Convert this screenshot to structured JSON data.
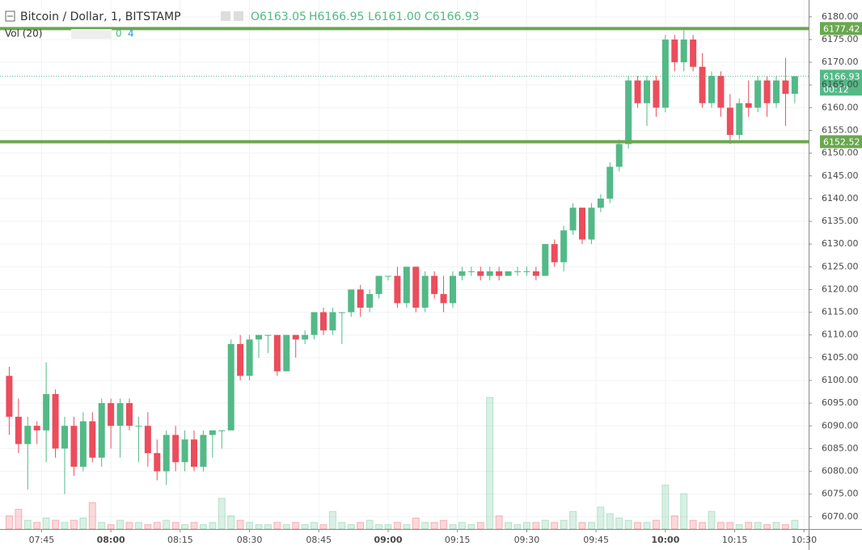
{
  "header": {
    "symbol": "Bitcoin / Dollar, 1, BITSTAMP",
    "open": "O6163.05",
    "high": "H6166.95",
    "low": "L6161.00",
    "close": "C6166.93"
  },
  "volume_legend": {
    "label": "Vol (20)",
    "values": [
      "0",
      "4"
    ]
  },
  "chart_data": {
    "type": "candlestick",
    "x": [
      "07:38",
      "07:40",
      "07:42",
      "07:44",
      "07:46",
      "07:48",
      "07:50",
      "07:52",
      "07:54",
      "07:56",
      "07:58",
      "08:00",
      "08:02",
      "08:04",
      "08:06",
      "08:08",
      "08:10",
      "08:12",
      "08:14",
      "08:16",
      "08:18",
      "08:20",
      "08:22",
      "08:24",
      "08:26",
      "08:28",
      "08:30",
      "08:32",
      "08:34",
      "08:36",
      "08:38",
      "08:40",
      "08:42",
      "08:44",
      "08:46",
      "08:48",
      "08:50",
      "08:52",
      "08:54",
      "08:56",
      "08:58",
      "09:00",
      "09:02",
      "09:04",
      "09:06",
      "09:08",
      "09:10",
      "09:12",
      "09:14",
      "09:16",
      "09:18",
      "09:20",
      "09:22",
      "09:24",
      "09:26",
      "09:28",
      "09:30",
      "09:32",
      "09:34",
      "09:36",
      "09:38",
      "09:40",
      "09:42",
      "09:44",
      "09:46",
      "09:48",
      "09:50",
      "09:52",
      "09:54",
      "09:56",
      "09:58",
      "10:00",
      "10:02",
      "10:04",
      "10:06",
      "10:08",
      "10:10",
      "10:12",
      "10:14",
      "10:16",
      "10:18",
      "10:20",
      "10:22",
      "10:24",
      "10:26",
      "10:28"
    ],
    "ohlc": [
      [
        6101,
        6103,
        6088,
        6092
      ],
      [
        6092,
        6096,
        6084,
        6086
      ],
      [
        6086,
        6092,
        6076,
        6090
      ],
      [
        6090,
        6091,
        6086,
        6089
      ],
      [
        6089,
        6104,
        6082,
        6097
      ],
      [
        6097,
        6098,
        6083,
        6085
      ],
      [
        6085,
        6092,
        6075,
        6090
      ],
      [
        6090,
        6092,
        6079,
        6081
      ],
      [
        6081,
        6093,
        6080,
        6091
      ],
      [
        6091,
        6093,
        6082,
        6083
      ],
      [
        6083,
        6096,
        6081,
        6095
      ],
      [
        6095,
        6096,
        6085,
        6090
      ],
      [
        6090,
        6096,
        6083,
        6095
      ],
      [
        6095,
        6096,
        6089,
        6090
      ],
      [
        6090,
        6092,
        6082,
        6090
      ],
      [
        6090,
        6093,
        6081,
        6084
      ],
      [
        6084,
        6087,
        6078,
        6080
      ],
      [
        6080,
        6089,
        6077,
        6088
      ],
      [
        6088,
        6090,
        6080,
        6082
      ],
      [
        6082,
        6089,
        6080,
        6087
      ],
      [
        6087,
        6089,
        6080,
        6081
      ],
      [
        6081,
        6089,
        6080,
        6088
      ],
      [
        6088,
        6089,
        6083,
        6089
      ],
      [
        6089,
        6089,
        6085,
        6089
      ],
      [
        6089,
        6109,
        6089,
        6108
      ],
      [
        6108,
        6110,
        6100,
        6101
      ],
      [
        6101,
        6110,
        6100,
        6109
      ],
      [
        6109,
        6110,
        6105,
        6110
      ],
      [
        6110,
        6110,
        6106,
        6110
      ],
      [
        6110,
        6110,
        6101,
        6102
      ],
      [
        6102,
        6110,
        6102,
        6110
      ],
      [
        6110,
        6110,
        6105,
        6109
      ],
      [
        6109,
        6111,
        6108,
        6110
      ],
      [
        6110,
        6115,
        6109,
        6115
      ],
      [
        6115,
        6116,
        6110,
        6111
      ],
      [
        6111,
        6116,
        6110,
        6115
      ],
      [
        6115,
        6115,
        6108,
        6115
      ],
      [
        6115,
        6120,
        6114,
        6120
      ],
      [
        6120,
        6121,
        6114,
        6116
      ],
      [
        6116,
        6120,
        6115,
        6119
      ],
      [
        6119,
        6123,
        6118,
        6123
      ],
      [
        6123,
        6123,
        6122,
        6123
      ],
      [
        6123,
        6125,
        6116,
        6117
      ],
      [
        6117,
        6125,
        6116,
        6125
      ],
      [
        6125,
        6125,
        6115,
        6116
      ],
      [
        6116,
        6124,
        6115,
        6123
      ],
      [
        6123,
        6124,
        6118,
        6119
      ],
      [
        6119,
        6123,
        6115,
        6117
      ],
      [
        6117,
        6124,
        6116,
        6123
      ],
      [
        6123,
        6125,
        6122,
        6124
      ],
      [
        6124,
        6125,
        6123,
        6124
      ],
      [
        6124,
        6125,
        6122,
        6123
      ],
      [
        6123,
        6125,
        6122,
        6124
      ],
      [
        6124,
        6125,
        6122,
        6123
      ],
      [
        6123,
        6124,
        6123,
        6124
      ],
      [
        6124,
        6125,
        6123,
        6124
      ],
      [
        6124,
        6125,
        6123,
        6124
      ],
      [
        6124,
        6125,
        6122,
        6123
      ],
      [
        6123,
        6130,
        6123,
        6130
      ],
      [
        6130,
        6131,
        6125,
        6126
      ],
      [
        6126,
        6134,
        6124,
        6133
      ],
      [
        6133,
        6139,
        6132,
        6138
      ],
      [
        6138,
        6138,
        6130,
        6131
      ],
      [
        6131,
        6139,
        6130,
        6138
      ],
      [
        6138,
        6141,
        6137,
        6140
      ],
      [
        6140,
        6148,
        6139,
        6147
      ],
      [
        6147,
        6153,
        6146,
        6152
      ],
      [
        6152,
        6167,
        6151,
        6166
      ],
      [
        6166,
        6167,
        6160,
        6161
      ],
      [
        6161,
        6167,
        6156,
        6166
      ],
      [
        6166,
        6167,
        6158,
        6160
      ],
      [
        6160,
        6176,
        6159,
        6175
      ],
      [
        6175,
        6176,
        6168,
        6170
      ],
      [
        6170,
        6177,
        6168,
        6175
      ],
      [
        6175,
        6176,
        6168,
        6169
      ],
      [
        6169,
        6172,
        6160,
        6161
      ],
      [
        6161,
        6168,
        6160,
        6167
      ],
      [
        6167,
        6168,
        6158,
        6160
      ],
      [
        6160,
        6163,
        6152,
        6154
      ],
      [
        6154,
        6162,
        6153,
        6161
      ],
      [
        6161,
        6166,
        6158,
        6160
      ],
      [
        6160,
        6167,
        6159,
        6166
      ],
      [
        6166,
        6167,
        6158,
        6161
      ],
      [
        6161,
        6167,
        6160,
        6166
      ],
      [
        6166,
        6171,
        6156,
        6163.05
      ],
      [
        6163.05,
        6166.95,
        6161.0,
        6166.93
      ]
    ],
    "volume": [
      6,
      9,
      4,
      3,
      5,
      4,
      3,
      4,
      5,
      12,
      3,
      2,
      4,
      3,
      3,
      2,
      3,
      4,
      3,
      2,
      3,
      2,
      3,
      14,
      6,
      4,
      3,
      2,
      2,
      3,
      2,
      3,
      2,
      3,
      2,
      8,
      3,
      2,
      3,
      4,
      2,
      2,
      3,
      2,
      5,
      3,
      3,
      4,
      2,
      3,
      2,
      3,
      60,
      6,
      3,
      2,
      3,
      3,
      4,
      3,
      4,
      8,
      3,
      3,
      10,
      7,
      5,
      4,
      3,
      3,
      4,
      20,
      6,
      16,
      4,
      3,
      8,
      3,
      3,
      2,
      3,
      3,
      2,
      3,
      2,
      4
    ],
    "xlim": [
      "07:36",
      "10:31"
    ],
    "ylim": [
      6067.3,
      6183.7
    ],
    "y2lim": [
      0,
      70
    ],
    "xticks": [
      "07:45",
      "08:00",
      "08:15",
      "08:30",
      "08:45",
      "09:00",
      "09:15",
      "09:30",
      "09:45",
      "10:00",
      "10:15",
      "10:30"
    ],
    "yticks": [
      {
        "value": 6070,
        "label": "6070.00"
      },
      {
        "value": 6075,
        "label": "6075.00"
      },
      {
        "value": 6080,
        "label": "6080.00"
      },
      {
        "value": 6085,
        "label": "6085.00"
      },
      {
        "value": 6090,
        "label": "6090.00"
      },
      {
        "value": 6095,
        "label": "6095.00"
      },
      {
        "value": 6100,
        "label": "6100.00"
      },
      {
        "value": 6105,
        "label": "6105.00"
      },
      {
        "value": 6110,
        "label": "6110.00"
      },
      {
        "value": 6115,
        "label": "6115.00"
      },
      {
        "value": 6120,
        "label": "6120.00"
      },
      {
        "value": 6125,
        "label": "6125.00"
      },
      {
        "value": 6130,
        "label": "6130.00"
      },
      {
        "value": 6135,
        "label": "6135.00"
      },
      {
        "value": 6140,
        "label": "6140.00"
      },
      {
        "value": 6145,
        "label": "6145.00"
      },
      {
        "value": 6150,
        "label": "6150.00"
      },
      {
        "value": 6155,
        "label": "6155.00"
      },
      {
        "value": 6160,
        "label": "6160.00"
      },
      {
        "value": 6165,
        "label": "6165.00"
      },
      {
        "value": 6170,
        "label": "6170.00"
      },
      {
        "value": 6175,
        "label": "6175.00"
      },
      {
        "value": 6180,
        "label": "6180.00"
      }
    ],
    "up_color": "#53b987",
    "down_color": "#eb4d5c",
    "levels": [
      6177.42,
      6152.52
    ],
    "level_color": "#6aa84f",
    "last_price": 6166.93,
    "countdown": "00:12",
    "grid": true
  }
}
